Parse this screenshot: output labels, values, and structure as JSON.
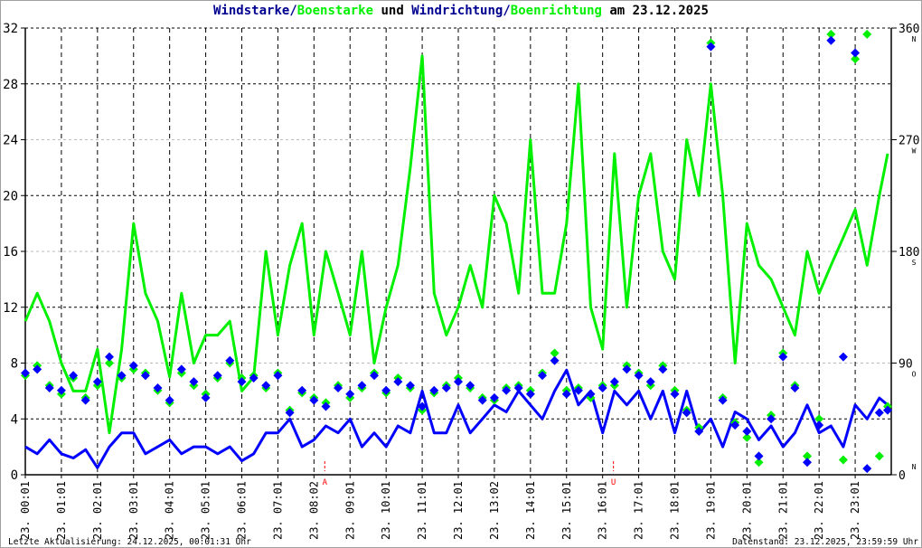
{
  "title": {
    "part1": "Windstarke",
    "sep1": "/",
    "part2": "Boenstarke",
    "mid": " und ",
    "part3": "Windrichtung",
    "sep2": "/",
    "part4": "Boenrichtung",
    "suffix": " am 23.12.2025"
  },
  "footer": {
    "left": "Letzte Aktualisierung: 24.12.2025, 00:01:31 Uhr",
    "right": "Datenstand: 23.12.2025, 23:59:59 Uhr"
  },
  "colors": {
    "wind": "#0000ff",
    "gust": "#00f000",
    "sun": "#ff0000",
    "title_blue": "#000090"
  },
  "chart_data": {
    "type": "line",
    "title": "Windstarke/Boenstarke und Windrichtung/Boenrichtung am 23.12.2025",
    "xlim": [
      0,
      24
    ],
    "ylim_left": [
      0,
      32
    ],
    "ylim_right": [
      0,
      360
    ],
    "grid": true,
    "y_ticks_left": [
      "0",
      "4",
      "8",
      "12",
      "16",
      "20",
      "24",
      "28",
      "32"
    ],
    "y_ticks_right": [
      {
        "value": "0",
        "compass": "N"
      },
      {
        "value": "90",
        "compass": "O"
      },
      {
        "value": "180",
        "compass": "S"
      },
      {
        "value": "270",
        "compass": "W"
      },
      {
        "value": "360",
        "compass": "N"
      }
    ],
    "x_tick_labels": [
      "23. 00:01",
      "23. 01:01",
      "23. 02:01",
      "23. 03:01",
      "23. 04:01",
      "23. 05:01",
      "23. 06:01",
      "23. 07:01",
      "23. 08:02",
      "23. 09:01",
      "23. 10:01",
      "23. 11:01",
      "23. 12:01",
      "23. 13:02",
      "23. 14:01",
      "23. 15:01",
      "23. 16:01",
      "23. 17:01",
      "23. 18:01",
      "23. 19:01",
      "23. 20:01",
      "23. 21:01",
      "23. 22:01",
      "23. 23:01"
    ],
    "sun_markers": [
      {
        "label": "A",
        "hour": 8.3
      },
      {
        "label": "U",
        "hour": 16.3
      }
    ],
    "x_hours": [
      0,
      0.33,
      0.67,
      1,
      1.33,
      1.67,
      2,
      2.33,
      2.67,
      3,
      3.33,
      3.67,
      4,
      4.33,
      4.67,
      5,
      5.33,
      5.67,
      6,
      6.33,
      6.67,
      7,
      7.33,
      7.67,
      8,
      8.33,
      8.67,
      9,
      9.33,
      9.67,
      10,
      10.33,
      10.67,
      11,
      11.33,
      11.67,
      12,
      12.33,
      12.67,
      13,
      13.33,
      13.67,
      14,
      14.33,
      14.67,
      15,
      15.33,
      15.67,
      16,
      16.33,
      16.67,
      17,
      17.33,
      17.67,
      18,
      18.33,
      18.67,
      19,
      19.33,
      19.67,
      20,
      20.33,
      20.67,
      21,
      21.33,
      21.67,
      22,
      22.33,
      22.67,
      23,
      23.33,
      23.67,
      23.9
    ],
    "series": [
      {
        "name": "Windstarke",
        "axis": "left",
        "kind": "line",
        "values": [
          2,
          1.5,
          2.5,
          1.5,
          1.2,
          1.8,
          0.5,
          2,
          3,
          3,
          1.5,
          2,
          2.5,
          1.5,
          2,
          2,
          1.5,
          2,
          1,
          1.5,
          3,
          3,
          4,
          2,
          2.5,
          3.5,
          3,
          4,
          2,
          3,
          2,
          3.5,
          3,
          6,
          3,
          3,
          5,
          3,
          4,
          5,
          4.5,
          6,
          5,
          4,
          6,
          7.5,
          5,
          6,
          3,
          6,
          5,
          6,
          4,
          6,
          3,
          6,
          3,
          4,
          2,
          4.5,
          4,
          2.5,
          3.5,
          2,
          3,
          5,
          3,
          3.5,
          2,
          5,
          4,
          5.5,
          5
        ]
      },
      {
        "name": "Boenstarke",
        "axis": "left",
        "kind": "line",
        "values": [
          11,
          13,
          11,
          8,
          6,
          6,
          9,
          3,
          9,
          18,
          13,
          11,
          7,
          13,
          8,
          10,
          10,
          11,
          6,
          7,
          16,
          10,
          15,
          18,
          10,
          16,
          13,
          10,
          16,
          8,
          12,
          15,
          22,
          30,
          13,
          10,
          12,
          15,
          12,
          20,
          18,
          13,
          24,
          13,
          13,
          18,
          28,
          12,
          9,
          23,
          12,
          20,
          23,
          16,
          14,
          24,
          20,
          28,
          20,
          8,
          18,
          15,
          14,
          12,
          10,
          16,
          13,
          15,
          17,
          19,
          15,
          20,
          23
        ]
      },
      {
        "name": "Windrichtung",
        "axis": "right",
        "kind": "scatter",
        "values": [
          82,
          85,
          70,
          68,
          80,
          60,
          75,
          95,
          80,
          88,
          80,
          70,
          60,
          85,
          75,
          62,
          80,
          92,
          75,
          78,
          72,
          80,
          50,
          68,
          60,
          55,
          70,
          65,
          72,
          80,
          68,
          75,
          72,
          55,
          68,
          70,
          75,
          72,
          60,
          62,
          68,
          70,
          65,
          80,
          92,
          65,
          68,
          65,
          70,
          75,
          85,
          80,
          75,
          85,
          65,
          50,
          35,
          345,
          60,
          40,
          35,
          15,
          45,
          95,
          70,
          10,
          40,
          350,
          95,
          340,
          5,
          50,
          52
        ]
      },
      {
        "name": "Boenrichtung",
        "axis": "right",
        "kind": "scatter",
        "values": [
          80,
          88,
          72,
          65,
          78,
          62,
          72,
          90,
          78,
          85,
          82,
          68,
          58,
          82,
          72,
          65,
          78,
          90,
          78,
          80,
          70,
          82,
          52,
          66,
          62,
          58,
          72,
          62,
          70,
          82,
          66,
          78,
          70,
          52,
          66,
          72,
          78,
          70,
          62,
          60,
          70,
          72,
          68,
          82,
          98,
          68,
          70,
          62,
          72,
          72,
          88,
          82,
          72,
          88,
          68,
          52,
          38,
          348,
          62,
          42,
          30,
          10,
          48,
          98,
          72,
          15,
          45,
          355,
          12,
          335,
          355,
          15,
          55
        ]
      }
    ]
  }
}
